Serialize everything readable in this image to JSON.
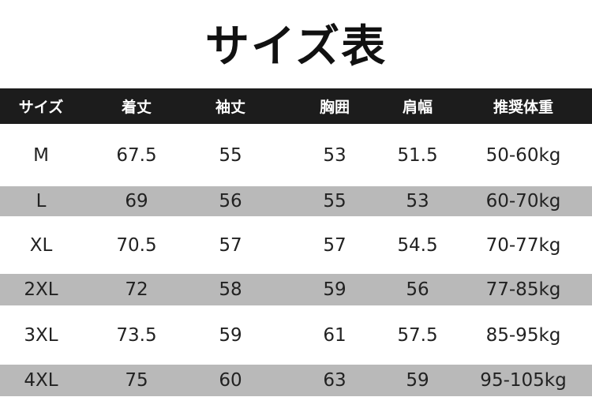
{
  "title": "サイズ表",
  "table": {
    "headers": [
      "サイズ",
      "着丈",
      "袖丈",
      "胸囲",
      "肩幅",
      "推奨体重"
    ],
    "rows": [
      [
        "M",
        "67.5",
        "55",
        "53",
        "51.5",
        "50-60kg"
      ],
      [
        "L",
        "69",
        "56",
        "55",
        "53",
        "60-70kg"
      ],
      [
        "XL",
        "70.5",
        "57",
        "57",
        "54.5",
        "70-77kg"
      ],
      [
        "2XL",
        "72",
        "58",
        "59",
        "56",
        "77-85kg"
      ],
      [
        "3XL",
        "73.5",
        "59",
        "61",
        "57.5",
        "85-95kg"
      ],
      [
        "4XL",
        "75",
        "60",
        "63",
        "59",
        "95-105kg"
      ]
    ]
  },
  "colors": {
    "header_bg": "#1c1c1c",
    "stripe": "#b9b9b9"
  }
}
